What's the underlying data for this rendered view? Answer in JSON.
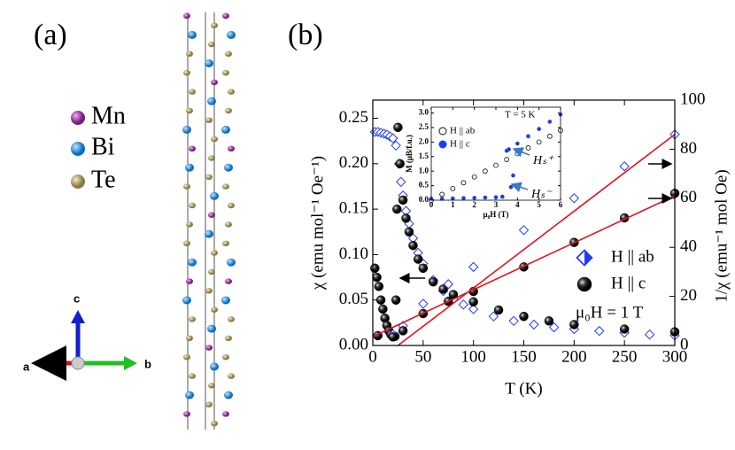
{
  "panel_a": {
    "label": "(a)",
    "legend": [
      "Mn",
      "Bi",
      "Te"
    ],
    "axes": [
      "a",
      "b",
      "c"
    ]
  },
  "panel_b": {
    "label": "(b)"
  },
  "chart_data": [
    {
      "type": "scatter",
      "xlabel": "T (K)",
      "ylabel": "χ (emu mol⁻¹ Oe⁻¹)",
      "y2label": "1/χ (emu⁻¹ mol Oe)",
      "annotation": "μ₀H = 1 T",
      "xlim": [
        0,
        300
      ],
      "xticks": [
        0,
        50,
        100,
        150,
        200,
        250,
        300
      ],
      "ylim": [
        0,
        0.27
      ],
      "yticks": [
        {
          "value": 0,
          "label": "0.00"
        },
        {
          "value": 0.05,
          "label": "0.05"
        },
        {
          "value": 0.1,
          "label": "0.10"
        },
        {
          "value": 0.15,
          "label": "0.15"
        },
        {
          "value": 0.2,
          "label": "0.20"
        },
        {
          "value": 0.25,
          "label": "0.25"
        }
      ],
      "y2lim": [
        0,
        100
      ],
      "y2ticks": [
        0,
        20,
        40,
        60,
        80,
        100
      ],
      "series": [
        {
          "name": "H || ab",
          "color": "#1f3cf0",
          "marker": "diamond",
          "x": [
            2,
            5,
            8,
            11,
            14,
            17,
            20,
            23,
            26,
            28,
            30,
            33,
            36,
            40,
            45,
            50,
            60,
            70,
            80,
            90,
            100,
            120,
            140,
            160,
            180,
            200,
            225,
            250,
            275,
            300
          ],
          "values": [
            0.235,
            0.235,
            0.234,
            0.233,
            0.232,
            0.23,
            0.228,
            0.22,
            0.2,
            0.18,
            0.165,
            0.148,
            0.134,
            0.118,
            0.102,
            0.09,
            0.072,
            0.06,
            0.051,
            0.045,
            0.04,
            0.032,
            0.027,
            0.023,
            0.02,
            0.018,
            0.016,
            0.014,
            0.012,
            0.011
          ]
        },
        {
          "name": "H || c",
          "color": "#111111",
          "marker": "sphere",
          "x": [
            2,
            4,
            6,
            8,
            10,
            12,
            14,
            16,
            18,
            20,
            22,
            23,
            24,
            25,
            27,
            30,
            33,
            36,
            40,
            45,
            50,
            60,
            70,
            80,
            100,
            125,
            150,
            175,
            200,
            250,
            300
          ],
          "values": [
            0.085,
            0.075,
            0.065,
            0.05,
            0.04,
            0.03,
            0.022,
            0.016,
            0.012,
            0.01,
            0.01,
            0.05,
            0.15,
            0.24,
            0.2,
            0.16,
            0.14,
            0.125,
            0.11,
            0.095,
            0.085,
            0.07,
            0.062,
            0.056,
            0.048,
            0.039,
            0.032,
            0.027,
            0.023,
            0.018,
            0.015
          ]
        },
        {
          "color": "#1f3cf0",
          "marker": "diamond",
          "axis": "y2",
          "x": [
            5,
            20,
            30,
            50,
            75,
            100,
            150,
            200,
            250,
            300
          ],
          "values": [
            4,
            4.5,
            8,
            17,
            25,
            32,
            47,
            60,
            73,
            86
          ]
        },
        {
          "color": "#111111",
          "marker": "sphere",
          "axis": "y2",
          "x": [
            5,
            20,
            30,
            50,
            75,
            100,
            150,
            200,
            250,
            300
          ],
          "values": [
            4,
            3.5,
            6,
            13,
            18,
            22,
            32,
            42,
            52,
            62
          ]
        },
        {
          "color": "#e0141e",
          "marker": "line",
          "axis": "y2",
          "x": [
            25,
            300
          ],
          "values": [
            0,
            86
          ]
        },
        {
          "color": "#e0141e",
          "marker": "line",
          "axis": "y2",
          "x": [
            0,
            300
          ],
          "values": [
            3.6,
            61
          ]
        }
      ]
    },
    {
      "type": "scatter",
      "xlabel": "μ₀H (T)",
      "ylabel": "M (μB/f.u.)",
      "annotations": [
        "T = 5 K",
        "Hₛ⁺",
        "Hₛ⁻"
      ],
      "xlim": [
        0,
        6
      ],
      "xticks": [
        0,
        1,
        2,
        3,
        4,
        5,
        6
      ],
      "ylim": [
        0,
        3.2
      ],
      "yticks": [
        {
          "value": 0,
          "label": "0.0"
        },
        0.5,
        {
          "value": 1,
          "label": "1.0"
        },
        1.5,
        {
          "value": 2,
          "label": "2.0"
        },
        2.5,
        {
          "value": 3,
          "label": "3.0"
        }
      ],
      "series": [
        {
          "name": "H || ab",
          "color": "#111111",
          "marker": "open-circle",
          "x": [
            0,
            0.5,
            1,
            1.5,
            2,
            2.5,
            3,
            3.5,
            4,
            4.5,
            5,
            5.5,
            6
          ],
          "values": [
            0,
            0.2,
            0.4,
            0.6,
            0.8,
            1,
            1.2,
            1.4,
            1.6,
            1.8,
            2,
            2.2,
            2.4
          ]
        },
        {
          "name": "H || c",
          "color": "#1f3cf0",
          "marker": "dot",
          "x": [
            0,
            0.5,
            1,
            1.5,
            2,
            2.5,
            3,
            3.3,
            3.5,
            3.6,
            4,
            4.5,
            5,
            5.5,
            6,
            3.7,
            3.8
          ],
          "values": [
            0.05,
            0.05,
            0.06,
            0.07,
            0.08,
            0.09,
            0.1,
            0.12,
            1.7,
            1.75,
            1.95,
            2.2,
            2.45,
            2.7,
            2.95,
            0.45,
            0.85
          ]
        }
      ]
    }
  ]
}
